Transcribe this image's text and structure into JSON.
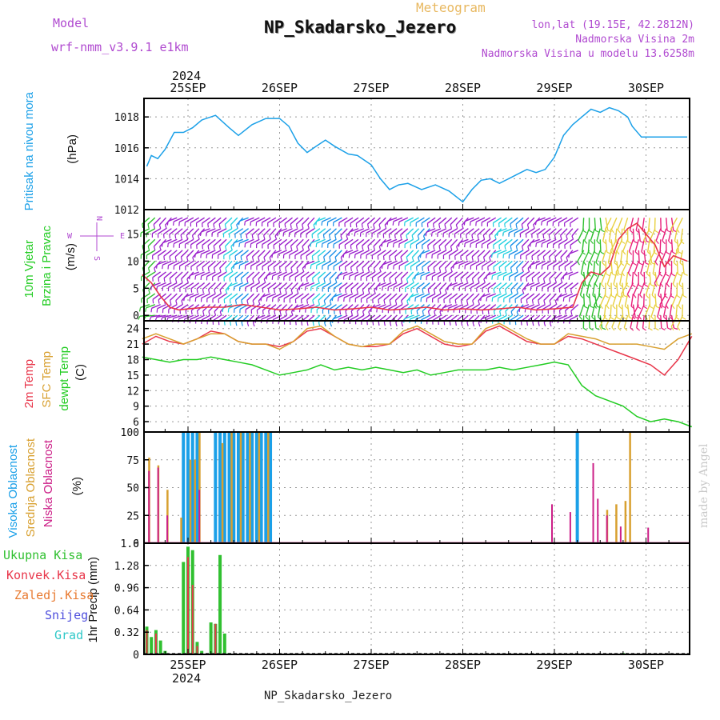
{
  "header": {
    "model_label": "Model",
    "model_name": "wrf-nmm_v3.9.1 e1km",
    "meteogram": "Meteogram",
    "station": "NP_Skadarsko_Jezero",
    "lonlat": "lon,lat (19.15E, 42.2812N)",
    "altitude": "Nadmorska Visina 2m",
    "model_altitude": "Nadmorska Visina u modelu 13.6258m",
    "credit": "made by Angel"
  },
  "footer": {
    "station": "NP_Skadarsko_Jezero"
  },
  "time_axis": {
    "year": "2024",
    "labels": [
      "25SEP",
      "26SEP",
      "27SEP",
      "28SEP",
      "29SEP",
      "30SEP"
    ]
  },
  "colors": {
    "pressure": "#1ba0e8",
    "wind_speed_main": "#e8364a",
    "barb_purple": "#9a1fcc",
    "barb_blue": "#1a8ee8",
    "barb_cyan": "#20d0e0",
    "barb_green": "#30c030",
    "barb_yellow": "#e8d040",
    "barb_pink": "#e8207a",
    "temp2m": "#e8364a",
    "sfc_temp": "#d8a030",
    "dewpoint": "#22cc22",
    "cloud_high": "#1ba0e8",
    "cloud_mid": "#d8a030",
    "cloud_low": "#cc2088",
    "precip_total": "#30c030",
    "precip_conv": "#e8364a",
    "precip_frozen": "#e87a30",
    "snow": "#5050dd",
    "hail": "#30c8c8"
  },
  "panels": {
    "pressure": {
      "label": "Pritisak na nivou mora",
      "unit": "(hPa)"
    },
    "wind": {
      "label1": "10m Vjetar",
      "label2": "Brzina i Pravac",
      "unit": "(m/s)",
      "compass_n": "N",
      "compass_w": "W",
      "compass_e": "E",
      "compass_s": "S"
    },
    "temperature": {
      "label1": "2m Temp",
      "label2": "SFC Temp",
      "label3": "dewpt Temp",
      "unit": "(C)"
    },
    "cloud": {
      "label1": "Visoka Oblacnost",
      "label2": "Srednja Oblacnost",
      "label3": "Niska Oblacnost",
      "unit": "(%)"
    },
    "precip": {
      "legend": [
        "Ukupna Kisa",
        "Konvek.Kisa",
        "Zaledj.Kisa",
        "Snijeg",
        "Grad"
      ],
      "unit": "1hr Precip (mm)"
    }
  },
  "chart_data": [
    {
      "type": "line",
      "title": "",
      "ylabel": "Pritisak na nivou mora (hPa)",
      "ylim": [
        1012,
        1019.2
      ],
      "ytick_labels": [
        "1012",
        "1014",
        "1016",
        "1018"
      ],
      "grid": true,
      "x_unit": "days since 25SEP 00",
      "series": [
        {
          "name": "Pritisak na nivou mora",
          "x": [
            -0.45,
            -0.4,
            -0.33,
            -0.25,
            -0.15,
            -0.05,
            0.05,
            0.15,
            0.3,
            0.45,
            0.55,
            0.7,
            0.85,
            1.0,
            1.1,
            1.2,
            1.3,
            1.4,
            1.5,
            1.6,
            1.75,
            1.85,
            2.0,
            2.1,
            2.2,
            2.3,
            2.4,
            2.55,
            2.7,
            2.85,
            3.0,
            3.1,
            3.2,
            3.3,
            3.4,
            3.5,
            3.6,
            3.7,
            3.8,
            3.9,
            4.0,
            4.1,
            4.2,
            4.3,
            4.4,
            4.5,
            4.6,
            4.7,
            4.8,
            4.85,
            4.95,
            5.05,
            5.15,
            5.25,
            5.35,
            5.45
          ],
          "values": [
            1014.8,
            1015.5,
            1015.3,
            1015.9,
            1017.0,
            1017.0,
            1017.3,
            1017.8,
            1018.1,
            1017.3,
            1016.8,
            1017.5,
            1017.9,
            1017.9,
            1017.4,
            1016.3,
            1015.7,
            1016.1,
            1016.5,
            1016.1,
            1015.6,
            1015.5,
            1014.9,
            1014.0,
            1013.3,
            1013.6,
            1013.7,
            1013.3,
            1013.6,
            1013.2,
            1012.5,
            1013.3,
            1013.9,
            1014.0,
            1013.7,
            1014.0,
            1014.3,
            1014.6,
            1014.4,
            1014.6,
            1015.4,
            1016.8,
            1017.5,
            1018.0,
            1018.5,
            1018.3,
            1018.6,
            1018.4,
            1018.0,
            1017.4,
            1016.7,
            1016.7,
            1016.7,
            1016.7,
            1016.7,
            1016.7
          ]
        }
      ]
    },
    {
      "type": "line",
      "title": "",
      "ylabel": "10m Vjetar Brzina i Pravac (m/s)",
      "ylim": [
        -1,
        19.5
      ],
      "ytick_labels": [
        "0",
        "5",
        "10",
        "15"
      ],
      "grid": true,
      "series": [
        {
          "name": "10m Vjetar",
          "x": [
            -0.5,
            -0.4,
            -0.3,
            -0.2,
            -0.1,
            0.0,
            0.2,
            0.4,
            0.6,
            0.8,
            1.0,
            1.2,
            1.4,
            1.6,
            1.8,
            2.0,
            2.2,
            2.4,
            2.6,
            2.8,
            3.0,
            3.2,
            3.4,
            3.6,
            3.8,
            4.0,
            4.2,
            4.3,
            4.4,
            4.5,
            4.6,
            4.7,
            4.8,
            4.9,
            5.0,
            5.1,
            5.2,
            5.3,
            5.45
          ],
          "values": [
            7.5,
            6.0,
            3.5,
            1.5,
            1.0,
            1.2,
            1.5,
            1.5,
            2.0,
            1.5,
            1.0,
            1.2,
            1.5,
            1.0,
            1.2,
            1.5,
            1.0,
            1.2,
            1.5,
            1.0,
            1.2,
            1.0,
            1.2,
            1.5,
            1.0,
            1.2,
            1.5,
            6.0,
            8.0,
            7.5,
            9.0,
            14.0,
            16.0,
            17.0,
            15.0,
            13.0,
            9.0,
            11.0,
            10.0
          ]
        }
      ]
    },
    {
      "type": "line",
      "title": "",
      "ylabel": "Temp (C)",
      "ylim": [
        4,
        25.5
      ],
      "ytick_labels": [
        "6",
        "9",
        "12",
        "15",
        "18",
        "21",
        "24"
      ],
      "grid": true,
      "x": [
        -0.5,
        -0.35,
        -0.2,
        -0.05,
        0.1,
        0.25,
        0.4,
        0.55,
        0.7,
        0.85,
        1.0,
        1.15,
        1.3,
        1.45,
        1.6,
        1.75,
        1.9,
        2.05,
        2.2,
        2.35,
        2.5,
        2.65,
        2.8,
        2.95,
        3.1,
        3.25,
        3.4,
        3.55,
        3.7,
        3.85,
        4.0,
        4.15,
        4.3,
        4.45,
        4.6,
        4.75,
        4.9,
        5.05,
        5.2,
        5.35,
        5.5
      ],
      "series": [
        {
          "name": "2m Temp",
          "values": [
            21.0,
            22.5,
            21.5,
            21.0,
            22.0,
            23.5,
            23.0,
            21.5,
            21.0,
            21.0,
            20.5,
            21.5,
            23.5,
            24.0,
            22.5,
            21.0,
            20.5,
            20.5,
            21.0,
            23.0,
            24.0,
            22.5,
            21.0,
            20.5,
            21.0,
            23.5,
            24.5,
            23.0,
            21.5,
            21.0,
            21.0,
            22.5,
            22.0,
            21.0,
            20.0,
            19.0,
            18.0,
            17.0,
            15.0,
            18.0,
            22.5
          ]
        },
        {
          "name": "SFC Temp",
          "values": [
            22.0,
            23.0,
            22.0,
            21.0,
            22.0,
            23.0,
            23.0,
            21.5,
            21.0,
            21.0,
            20.0,
            21.5,
            24.0,
            24.5,
            22.5,
            21.0,
            20.5,
            21.0,
            21.0,
            23.5,
            24.5,
            23.0,
            21.5,
            21.0,
            21.0,
            24.0,
            25.0,
            23.5,
            22.0,
            21.0,
            21.0,
            23.0,
            22.5,
            22.0,
            21.0,
            21.0,
            21.0,
            20.5,
            20.0,
            22.0,
            23.0
          ]
        },
        {
          "name": "dewpt Temp",
          "values": [
            18.5,
            18.0,
            17.5,
            18.0,
            18.0,
            18.5,
            18.0,
            17.5,
            17.0,
            16.0,
            15.0,
            15.5,
            16.0,
            17.0,
            16.0,
            16.5,
            16.0,
            16.5,
            16.0,
            15.5,
            16.0,
            15.0,
            15.5,
            16.0,
            16.0,
            16.0,
            16.5,
            16.0,
            16.5,
            17.0,
            17.5,
            17.0,
            13.0,
            11.0,
            10.0,
            9.0,
            7.0,
            6.0,
            6.5,
            6.0,
            5.0
          ]
        }
      ]
    },
    {
      "type": "bar",
      "title": "",
      "ylabel": "Oblacnost (%)",
      "ylim": [
        0,
        100
      ],
      "ytick_labels": [
        "0",
        "25",
        "50",
        "75",
        "100"
      ],
      "grid": true,
      "series": [
        {
          "name": "Visoka Oblacnost",
          "x": [
            -0.05,
            0.0,
            0.05,
            0.1,
            0.3,
            0.35,
            0.4,
            0.45,
            0.5,
            0.55,
            0.6,
            0.65,
            0.7,
            0.75,
            0.8,
            0.85,
            0.9,
            4.25
          ],
          "values": [
            100,
            100,
            100,
            100,
            100,
            100,
            100,
            100,
            100,
            100,
            100,
            100,
            100,
            100,
            100,
            100,
            100,
            100
          ]
        },
        {
          "name": "Srednja Oblacnost",
          "x": [
            -0.45,
            -0.35,
            -0.25,
            -0.1,
            0.0,
            0.05,
            0.1,
            0.35,
            0.45,
            0.55,
            0.65,
            0.75,
            0.85,
            4.55,
            4.65,
            4.75,
            4.8
          ],
          "values": [
            77,
            70,
            48,
            23,
            75,
            75,
            100,
            90,
            100,
            100,
            100,
            100,
            100,
            30,
            35,
            38,
            100
          ]
        },
        {
          "name": "Niska Oblacnost",
          "x": [
            -0.4,
            -0.3,
            -0.2,
            0.15,
            4.0,
            4.2,
            4.45,
            4.5,
            4.6,
            4.75,
            5.05
          ],
          "values": [
            65,
            68,
            25,
            48,
            35,
            28,
            72,
            40,
            25,
            15,
            14
          ]
        }
      ]
    },
    {
      "type": "bar",
      "title": "",
      "ylabel": "1hr Precip (mm)",
      "ylim": [
        0,
        1.6
      ],
      "ytick_labels": [
        "0",
        "0.32",
        "0.64",
        "0.96",
        "1.28",
        "1.6"
      ],
      "grid": true,
      "series": [
        {
          "name": "Ukupna Kisa",
          "x": [
            -0.45,
            -0.4,
            -0.35,
            -0.3,
            -0.25,
            -0.05,
            0.0,
            0.05,
            0.1,
            0.15,
            0.25,
            0.3,
            0.35,
            0.4,
            0.45,
            4.75
          ],
          "values": [
            0.4,
            0.25,
            0.35,
            0.2,
            0.05,
            1.33,
            1.55,
            1.5,
            0.18,
            0.05,
            0.46,
            0.44,
            1.43,
            0.3,
            0.02,
            0.02
          ]
        },
        {
          "name": "Konvek.Kisa",
          "x": [
            -0.45,
            -0.35,
            0.0,
            0.05,
            0.1,
            0.3
          ],
          "values": [
            0.35,
            0.3,
            1.4,
            1.0,
            0.12,
            0.44
          ]
        }
      ]
    }
  ]
}
